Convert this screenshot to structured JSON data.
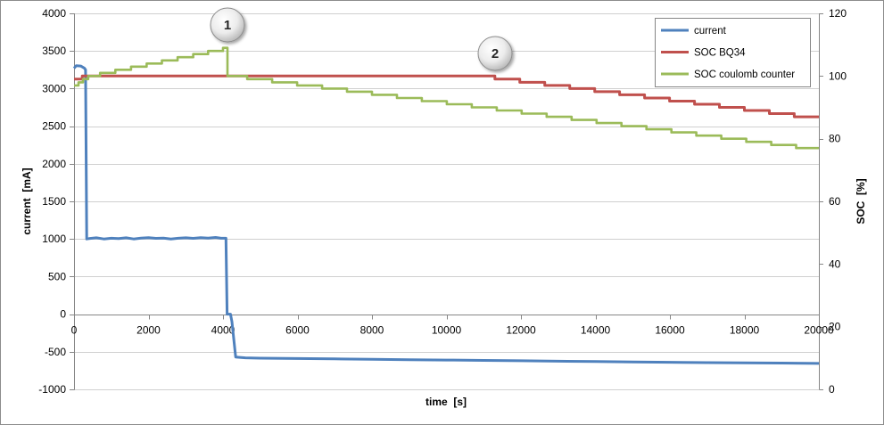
{
  "chart_data": {
    "type": "line",
    "xlabel": "time  [s]",
    "ylabel": "current  [mA]",
    "y2label": "SOC  [%]",
    "xlim": [
      0,
      20000
    ],
    "ylim": [
      -1000,
      4000
    ],
    "y2lim": [
      0,
      120
    ],
    "xticks": [
      0,
      2000,
      4000,
      6000,
      8000,
      10000,
      12000,
      14000,
      16000,
      18000,
      20000
    ],
    "yticks": [
      4000,
      3500,
      3000,
      2500,
      2000,
      1500,
      1000,
      500,
      0,
      -500,
      -1000
    ],
    "y2ticks": [
      120,
      100,
      80,
      60,
      40,
      20,
      0
    ],
    "grid": true,
    "legend_position": "top-right",
    "series": [
      {
        "name": "current",
        "y_axis": 1,
        "color": "#4F81BD",
        "step": false,
        "x": [
          0,
          60,
          180,
          280,
          310,
          340,
          400,
          600,
          800,
          1000,
          1200,
          1400,
          1600,
          1800,
          2000,
          2200,
          2400,
          2600,
          2800,
          3000,
          3200,
          3400,
          3600,
          3800,
          3950,
          4080,
          4110,
          4200,
          4240,
          4340,
          4600,
          5000,
          6000,
          7000,
          8000,
          9000,
          10000,
          11000,
          12000,
          13000,
          14000,
          15000,
          16000,
          17000,
          18000,
          19000,
          20000
        ],
        "y": [
          3270,
          3305,
          3300,
          3270,
          3250,
          1000,
          1005,
          1015,
          1000,
          1010,
          1005,
          1015,
          1000,
          1012,
          1018,
          1008,
          1012,
          1000,
          1010,
          1015,
          1008,
          1018,
          1012,
          1020,
          1010,
          1010,
          0,
          0,
          -100,
          -570,
          -580,
          -585,
          -590,
          -595,
          -600,
          -605,
          -610,
          -615,
          -620,
          -625,
          -630,
          -635,
          -640,
          -645,
          -648,
          -650,
          -655
        ]
      },
      {
        "name": "SOC BQ34",
        "y_axis": 2,
        "color": "#C0504D",
        "step": true,
        "x": [
          0,
          220,
          11300,
          11970,
          12640,
          13310,
          13980,
          14650,
          15320,
          15990,
          16660,
          17330,
          18000,
          18670,
          19340,
          20000
        ],
        "y": [
          99,
          100,
          99,
          98,
          97,
          96,
          95,
          94,
          93,
          92,
          91,
          90,
          89,
          88,
          87,
          87
        ]
      },
      {
        "name": "SOC coulomb counter",
        "y_axis": 2,
        "color": "#9BBB59",
        "step": true,
        "x": [
          0,
          120,
          240,
          380,
          700,
          1110,
          1530,
          1950,
          2360,
          2780,
          3200,
          3600,
          4000,
          4120,
          4650,
          5320,
          5990,
          6660,
          7330,
          8000,
          8670,
          9340,
          10010,
          10680,
          11350,
          12020,
          12690,
          13360,
          14030,
          14700,
          15370,
          16040,
          16710,
          17380,
          18050,
          18720,
          19390,
          20000
        ],
        "y": [
          97,
          98,
          99,
          100,
          101,
          102,
          103,
          104,
          105,
          106,
          107,
          108,
          109,
          100,
          99,
          98,
          97,
          96,
          95,
          94,
          93,
          92,
          91,
          90,
          89,
          88,
          87,
          86,
          85,
          84,
          83,
          82,
          81,
          80,
          79,
          78,
          77,
          77
        ]
      }
    ],
    "annotations": [
      "1",
      "2"
    ]
  }
}
